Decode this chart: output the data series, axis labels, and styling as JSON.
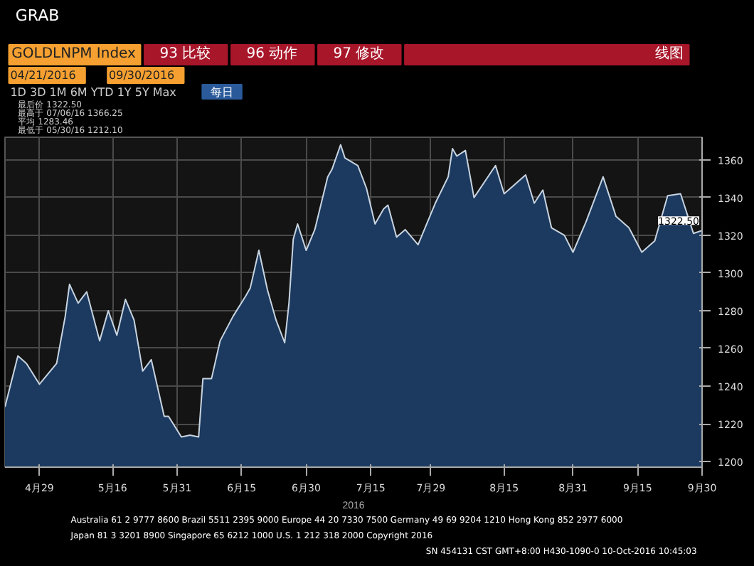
{
  "chart_data": {
    "type": "area",
    "title": "GOLDLNPM Index",
    "xlabel": "2016",
    "x": [
      "2016-04-21",
      "2016-04-24",
      "2016-04-26",
      "2016-04-29",
      "2016-05-03",
      "2016-05-05",
      "2016-05-06",
      "2016-05-08",
      "2016-05-10",
      "2016-05-13",
      "2016-05-15",
      "2016-05-17",
      "2016-05-19",
      "2016-05-21",
      "2016-05-23",
      "2016-05-25",
      "2016-05-28",
      "2016-05-29",
      "2016-06-01",
      "2016-06-03",
      "2016-06-05",
      "2016-06-06",
      "2016-06-08",
      "2016-06-10",
      "2016-06-13",
      "2016-06-16",
      "2016-06-17",
      "2016-06-19",
      "2016-06-21",
      "2016-06-23",
      "2016-06-25",
      "2016-06-26",
      "2016-06-27",
      "2016-06-28",
      "2016-06-30",
      "2016-07-02",
      "2016-07-05",
      "2016-07-06",
      "2016-07-08",
      "2016-07-09",
      "2016-07-12",
      "2016-07-14",
      "2016-07-16",
      "2016-07-18",
      "2016-07-19",
      "2016-07-21",
      "2016-07-23",
      "2016-07-26",
      "2016-07-30",
      "2016-08-02",
      "2016-08-03",
      "2016-08-04",
      "2016-08-06",
      "2016-08-08",
      "2016-08-13",
      "2016-08-15",
      "2016-08-17",
      "2016-08-20",
      "2016-08-22",
      "2016-08-24",
      "2016-08-26",
      "2016-08-29",
      "2016-08-31",
      "2016-09-03",
      "2016-09-07",
      "2016-09-10",
      "2016-09-13",
      "2016-09-16",
      "2016-09-19",
      "2016-09-22",
      "2016-09-25",
      "2016-09-28",
      "2016-09-30"
    ],
    "series": [
      {
        "color": "#1c3a60",
        "values": [
          1229,
          1256,
          1252,
          1241,
          1252,
          1277,
          1294,
          1284,
          1290,
          1264,
          1280,
          1267,
          1286,
          1275,
          1248,
          1254,
          1224,
          1224,
          1213,
          1214,
          1213,
          1244,
          1244,
          1264,
          1277,
          1288,
          1292,
          1312,
          1291,
          1275,
          1263,
          1284,
          1318,
          1326,
          1312,
          1323,
          1351,
          1355,
          1368,
          1361,
          1357,
          1345,
          1326,
          1334,
          1336,
          1319,
          1323,
          1315,
          1337,
          1351,
          1366,
          1362,
          1365,
          1340,
          1357,
          1342,
          1346,
          1352,
          1337,
          1344,
          1324,
          1320,
          1311,
          1327,
          1351,
          1330,
          1324,
          1311,
          1317,
          1341,
          1342,
          1321,
          1322.5
        ]
      }
    ],
    "xlim": [
      "2016-04-21",
      "2016-09-30"
    ],
    "xticks": [
      {
        "value": "2016-04-29",
        "label": "4月29"
      },
      {
        "value": "2016-05-16",
        "label": "5月16"
      },
      {
        "value": "2016-05-31",
        "label": "5月31"
      },
      {
        "value": "2016-06-15",
        "label": "6月15"
      },
      {
        "value": "2016-06-30",
        "label": "6月30"
      },
      {
        "value": "2016-07-15",
        "label": "7月15"
      },
      {
        "value": "2016-07-29",
        "label": "7月29"
      },
      {
        "value": "2016-08-15",
        "label": "8月15"
      },
      {
        "value": "2016-08-31",
        "label": "8月31"
      },
      {
        "value": "2016-09-15",
        "label": "9月15"
      },
      {
        "value": "2016-09-30",
        "label": "9月30"
      }
    ],
    "ylim": [
      1197,
      1372
    ],
    "yticks": [
      1200,
      1220,
      1240,
      1260,
      1280,
      1300,
      1320,
      1340,
      1360
    ],
    "grid": true,
    "annotations": [
      "GRAB",
      "93 比较",
      "96 动作",
      "97 修改",
      "线图",
      "04/21/2016",
      "09/30/2016",
      "1D 3D 1M 6M YTD 1Y 5Y Max",
      "每日",
      "最后价 1322.50",
      "最高于 07/06/16 1366.25",
      "平均 1283.46",
      "最低于 05/30/16 1212.10",
      {
        "text": "1322.50",
        "x": "2016-09-30",
        "y": 1322.5
      },
      "Australia 61 2 9777 8600 Brazil 5511 2395 9000 Europe 44 20 7330 7500 Germany 49 69 9204 1210 Hong Kong 852 2977 6000",
      "Japan 81 3 3201 8900   Singapore 65 6212 1000   U.S. 1 212 318 2000   Copyright 2016",
      "SN 454131 CST GMT+8:00 H430-1090-0 10-Oct-2016 10:45:03"
    ]
  }
}
